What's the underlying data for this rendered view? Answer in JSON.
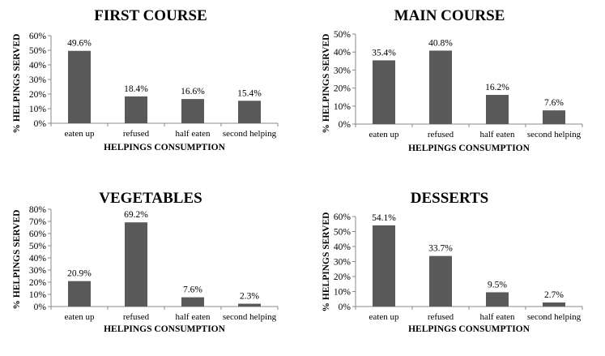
{
  "chart_data": [
    {
      "type": "bar",
      "title": "FIRST COURSE",
      "xlabel": "HELPINGS CONSUMPTION",
      "ylabel": "% HELPINGS SERVED",
      "categories": [
        "eaten up",
        "refused",
        "half eaten",
        "second helping"
      ],
      "values": [
        49.6,
        18.4,
        16.6,
        15.4
      ],
      "data_labels": [
        "49.6%",
        "18.4%",
        "16.6%",
        "15.4%"
      ],
      "ylim": [
        0,
        60
      ],
      "yticks": [
        "0%",
        "10%",
        "20%",
        "30%",
        "40%",
        "50%",
        "60%"
      ],
      "grid": false,
      "bar_color": "#595959"
    },
    {
      "type": "bar",
      "title": "MAIN COURSE",
      "xlabel": "HELPINGS CONSUMPTION",
      "ylabel": "% HELPINGS SERVED",
      "categories": [
        "eaten up",
        "refused",
        "half eaten",
        "second helping"
      ],
      "values": [
        35.4,
        40.8,
        16.2,
        7.6
      ],
      "data_labels": [
        "35.4%",
        "40.8%",
        "16.2%",
        "7.6%"
      ],
      "ylim": [
        0,
        50
      ],
      "yticks": [
        "0%",
        "10%",
        "20%",
        "30%",
        "40%",
        "50%"
      ],
      "grid": false,
      "bar_color": "#595959"
    },
    {
      "type": "bar",
      "title": "VEGETABLES",
      "xlabel": "HELPINGS CONSUMPTION",
      "ylabel": "% HELPINGS SERVED",
      "categories": [
        "eaten up",
        "refused",
        "half eaten",
        "second helping"
      ],
      "values": [
        20.9,
        69.2,
        7.6,
        2.3
      ],
      "data_labels": [
        "20.9%",
        "69.2%",
        "7.6%",
        "2.3%"
      ],
      "ylim": [
        0,
        80
      ],
      "yticks": [
        "0%",
        "10%",
        "20%",
        "30%",
        "40%",
        "50%",
        "60%",
        "70%",
        "80%"
      ],
      "grid": false,
      "bar_color": "#595959"
    },
    {
      "type": "bar",
      "title": "DESSERTS",
      "xlabel": "HELPINGS CONSUMPTION",
      "ylabel": "% HELPINGS SERVED",
      "categories": [
        "eaten up",
        "refused",
        "half eaten",
        "second helping"
      ],
      "values": [
        54.1,
        33.7,
        9.5,
        2.7
      ],
      "data_labels": [
        "54.1%",
        "33.7%",
        "9.5%",
        "2.7%"
      ],
      "ylim": [
        0,
        60
      ],
      "yticks": [
        "0%",
        "10%",
        "20%",
        "30%",
        "40%",
        "50%",
        "60%"
      ],
      "grid": false,
      "bar_color": "#595959"
    }
  ]
}
